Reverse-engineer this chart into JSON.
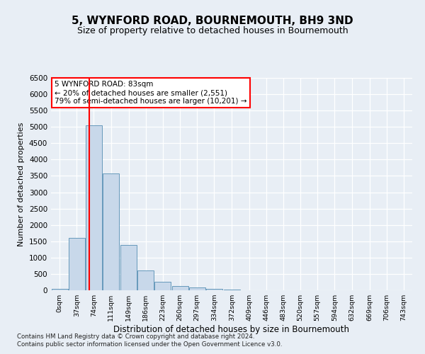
{
  "title": "5, WYNFORD ROAD, BOURNEMOUTH, BH9 3ND",
  "subtitle": "Size of property relative to detached houses in Bournemouth",
  "xlabel": "Distribution of detached houses by size in Bournemouth",
  "ylabel": "Number of detached properties",
  "footnote1": "Contains HM Land Registry data © Crown copyright and database right 2024.",
  "footnote2": "Contains public sector information licensed under the Open Government Licence v3.0.",
  "bar_color": "#c8d8ea",
  "bar_edge_color": "#6699bb",
  "annotation_text": "5 WYNFORD ROAD: 83sqm\n← 20% of detached houses are smaller (2,551)\n79% of semi-detached houses are larger (10,201) →",
  "vline_x": 83,
  "vline_color": "red",
  "categories": [
    "0sqm",
    "37sqm",
    "74sqm",
    "111sqm",
    "149sqm",
    "186sqm",
    "223sqm",
    "260sqm",
    "297sqm",
    "334sqm",
    "372sqm",
    "409sqm",
    "446sqm",
    "483sqm",
    "520sqm",
    "557sqm",
    "594sqm",
    "632sqm",
    "669sqm",
    "706sqm",
    "743sqm"
  ],
  "bin_edges": [
    0,
    37,
    74,
    111,
    149,
    186,
    223,
    260,
    297,
    334,
    372,
    409,
    446,
    483,
    520,
    557,
    594,
    632,
    669,
    706,
    743
  ],
  "values": [
    50,
    1600,
    5050,
    3580,
    1380,
    610,
    270,
    125,
    85,
    45,
    25,
    8,
    4,
    2,
    1,
    0,
    0,
    0,
    0,
    0
  ],
  "ylim": [
    0,
    6500
  ],
  "yticks": [
    0,
    500,
    1000,
    1500,
    2000,
    2500,
    3000,
    3500,
    4000,
    4500,
    5000,
    5500,
    6000,
    6500
  ],
  "background_color": "#e8eef5",
  "plot_bg_color": "#e8eef5",
  "grid_color": "#ffffff",
  "title_fontsize": 11,
  "subtitle_fontsize": 9,
  "annot_box_color": "#ffffff",
  "annot_box_edge": "red"
}
